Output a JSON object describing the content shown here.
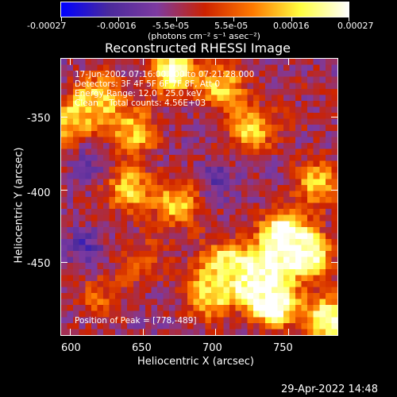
{
  "footer": {
    "timestamp": "29-Apr-2022 14:48"
  },
  "chart_data": {
    "type": "heatmap",
    "title": "Reconstructed RHESSI Image",
    "xlabel": "Heliocentric X (arcsec)",
    "ylabel": "Heliocentric Y (arcsec)",
    "xlim": [
      594,
      784
    ],
    "ylim": [
      -500,
      -310
    ],
    "x_ticks": [
      "600",
      "650",
      "700",
      "750"
    ],
    "y_ticks": [
      "-350",
      "-400",
      "-450"
    ],
    "colorbar": {
      "range": [
        -0.00027,
        0.00027
      ],
      "tick_labels": [
        "-0.00027",
        "-0.00016",
        "-5.5e-05",
        "5.5e-05",
        "0.00016",
        "0.00027"
      ],
      "units": "(photons cm⁻² s⁻¹ asec⁻²)",
      "colors": [
        "#0000ff",
        "#4b2a9c",
        "#7d3aa0",
        "#cc2200",
        "#ff7a00",
        "#ffff40",
        "#ffffff"
      ]
    },
    "annotations": {
      "time_range": "17-Jun-2002 07:16:00.000 to 07:21:28.000",
      "detectors": "Detectors: 3F 4F 5F 6F 7F 8F, Att 0",
      "energy_range": "Energy Range: 12.0 - 25.0 keV",
      "method_counts": "Clean    Total counts: 4.56E+03",
      "peak": "Position of Peak = [778,-489]"
    },
    "peak_position": [
      778,
      -489
    ],
    "features": [
      {
        "x": 670,
        "y": -318,
        "value": 0.00027
      },
      {
        "x": 705,
        "y": -330,
        "value": 0.00016
      },
      {
        "x": 645,
        "y": -360,
        "value": 0.00016
      },
      {
        "x": 620,
        "y": -335,
        "value": 0.00016
      },
      {
        "x": 600,
        "y": -355,
        "value": 0.00016
      },
      {
        "x": 640,
        "y": -400,
        "value": 0.00016
      },
      {
        "x": 675,
        "y": -410,
        "value": 0.00016
      },
      {
        "x": 725,
        "y": -360,
        "value": 0.00016
      },
      {
        "x": 770,
        "y": -395,
        "value": 0.00016
      },
      {
        "x": 745,
        "y": -430,
        "value": 0.00027
      },
      {
        "x": 765,
        "y": -445,
        "value": 0.00027
      },
      {
        "x": 730,
        "y": -460,
        "value": 0.00027
      },
      {
        "x": 740,
        "y": -480,
        "value": 0.00027
      },
      {
        "x": 778,
        "y": -489,
        "value": 0.00027
      },
      {
        "x": 705,
        "y": -450,
        "value": 0.00016
      },
      {
        "x": 695,
        "y": -475,
        "value": 0.00016
      },
      {
        "x": 650,
        "y": -450,
        "value": 5e-05
      },
      {
        "x": 620,
        "y": -475,
        "value": 5e-05
      },
      {
        "x": 615,
        "y": -380,
        "value": -0.00016
      },
      {
        "x": 700,
        "y": -395,
        "value": -0.00016
      },
      {
        "x": 610,
        "y": -440,
        "value": -0.00016
      },
      {
        "x": 760,
        "y": -340,
        "value": -5e-05
      }
    ]
  }
}
